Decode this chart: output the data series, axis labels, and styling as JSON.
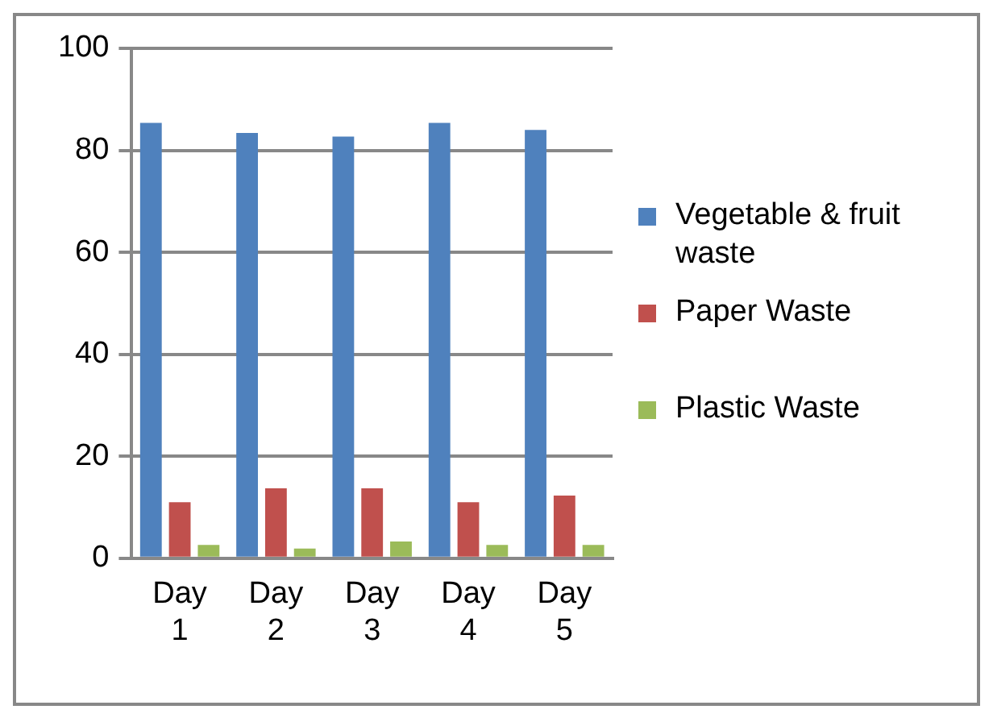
{
  "chart_data": {
    "type": "bar",
    "categories": [
      "Day 1",
      "Day 2",
      "Day 3",
      "Day 4",
      "Day 5"
    ],
    "series": [
      {
        "name": "Vegetable & fruit waste",
        "color": "#4f81bd",
        "values": [
          85.4,
          83.4,
          82.7,
          85.4,
          84
        ]
      },
      {
        "name": "Paper Waste",
        "color": "#c0504d",
        "values": [
          11,
          13.7,
          13.7,
          11,
          12.3
        ]
      },
      {
        "name": "Plastic Waste",
        "color": "#9bbb59",
        "values": [
          2.6,
          1.9,
          3.3,
          2.6,
          2.6
        ]
      }
    ],
    "ylim": [
      0,
      100
    ],
    "yticks": [
      0,
      20,
      40,
      60,
      80,
      100
    ],
    "grid": "y",
    "legend": "right"
  }
}
